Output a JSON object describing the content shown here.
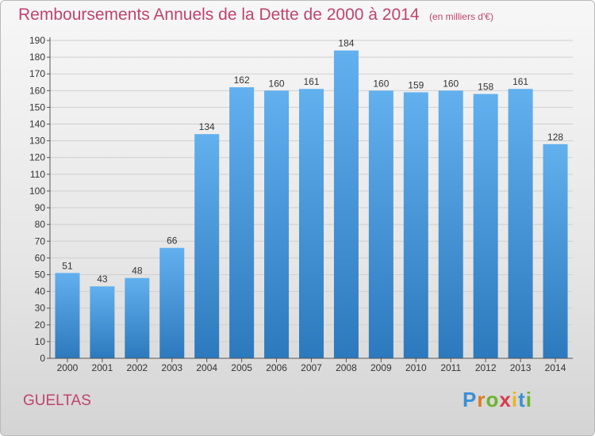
{
  "chart_data": {
    "type": "bar",
    "title": "Remboursements Annuels de la Dette de 2000 à 2014",
    "subtitle": "(en milliers d'€)",
    "categories": [
      "2000",
      "2001",
      "2002",
      "2003",
      "2004",
      "2005",
      "2006",
      "2007",
      "2008",
      "2009",
      "2010",
      "2011",
      "2012",
      "2013",
      "2014"
    ],
    "values": [
      51,
      43,
      48,
      66,
      134,
      162,
      160,
      161,
      184,
      160,
      159,
      160,
      158,
      161,
      128
    ],
    "ylim": [
      0,
      190
    ],
    "yticks": [
      0,
      10,
      20,
      30,
      40,
      50,
      60,
      70,
      80,
      90,
      100,
      110,
      120,
      130,
      140,
      150,
      160,
      170,
      180,
      190
    ],
    "grid": true,
    "bar_color": "#4f9fdf"
  },
  "footer": {
    "commune": "GUELTAS"
  },
  "logo": {
    "text": "Proxiti"
  },
  "colors": {
    "title": "#c0436e",
    "grid": "#cfcfcf",
    "axis": "#555555"
  }
}
